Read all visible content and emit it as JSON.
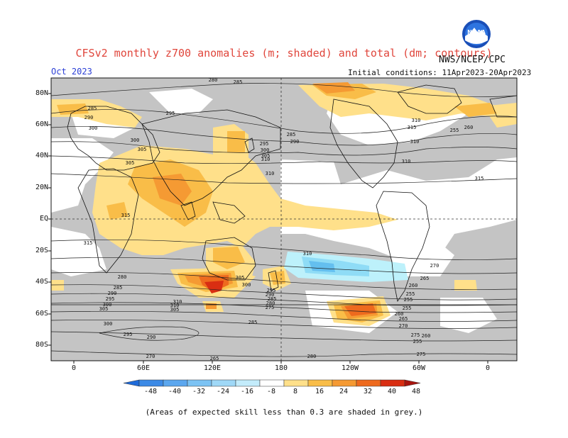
{
  "header": {
    "title": "CFSv2 monthly z700 anomalies (m; shaded) and total (dm; contours)",
    "month": "Oct 2023",
    "agency": "NWS/NCEP/CPC",
    "initial_conditions": "Initial conditions: 11Apr2023-20Apr2023",
    "logo_text": "NOAA"
  },
  "map": {
    "projection": "equirectangular",
    "lat_labels": [
      "80N",
      "60N",
      "40N",
      "20N",
      "EQ",
      "20S",
      "40S",
      "60S",
      "80S"
    ],
    "lon_labels": [
      "0",
      "60E",
      "120E",
      "180",
      "120W",
      "60W",
      "0"
    ],
    "colors": {
      "skill_grey": "#c4c4c4",
      "pos_8": "#ffe08a",
      "pos_16": "#f9bd48",
      "pos_24": "#f59a33",
      "pos_32": "#ee6a1e",
      "pos_40": "#d92e12",
      "neg_8": "#bdf1fb",
      "neg_16": "#8fdcf6",
      "neg_24": "#64bfef"
    },
    "contour_labels": [
      "285",
      "285",
      "290",
      "295",
      "300",
      "300",
      "305",
      "305",
      "310",
      "310",
      "315",
      "315",
      "315",
      "285",
      "290",
      "295",
      "300",
      "305",
      "310",
      "315",
      "310",
      "310",
      "310",
      "305",
      "300",
      "295",
      "290",
      "285",
      "280",
      "275",
      "270",
      "265",
      "260",
      "255",
      "255",
      "255",
      "260",
      "265",
      "270",
      "275",
      "280",
      "285",
      "290",
      "295",
      "300",
      "305",
      "310",
      "310",
      "305",
      "300",
      "295",
      "290",
      "285",
      "280",
      "275",
      "270",
      "265",
      "255",
      "260",
      "255",
      "260",
      "280"
    ]
  },
  "colorbar": {
    "labels": [
      "-48",
      "-40",
      "-32",
      "-24",
      "-16",
      "-8",
      "8",
      "16",
      "24",
      "32",
      "40",
      "48"
    ],
    "colors": [
      "#1f6bd9",
      "#3c8ae6",
      "#5ba7ef",
      "#7cc3f4",
      "#9fd8f7",
      "#c3ecfb",
      "#ffffff",
      "#ffe08a",
      "#f9bd48",
      "#f59a33",
      "#ee6a1e",
      "#d92e12",
      "#a8140e"
    ]
  },
  "footnote": "(Areas of expected skill less than 0.3 are shaded in grey.)"
}
